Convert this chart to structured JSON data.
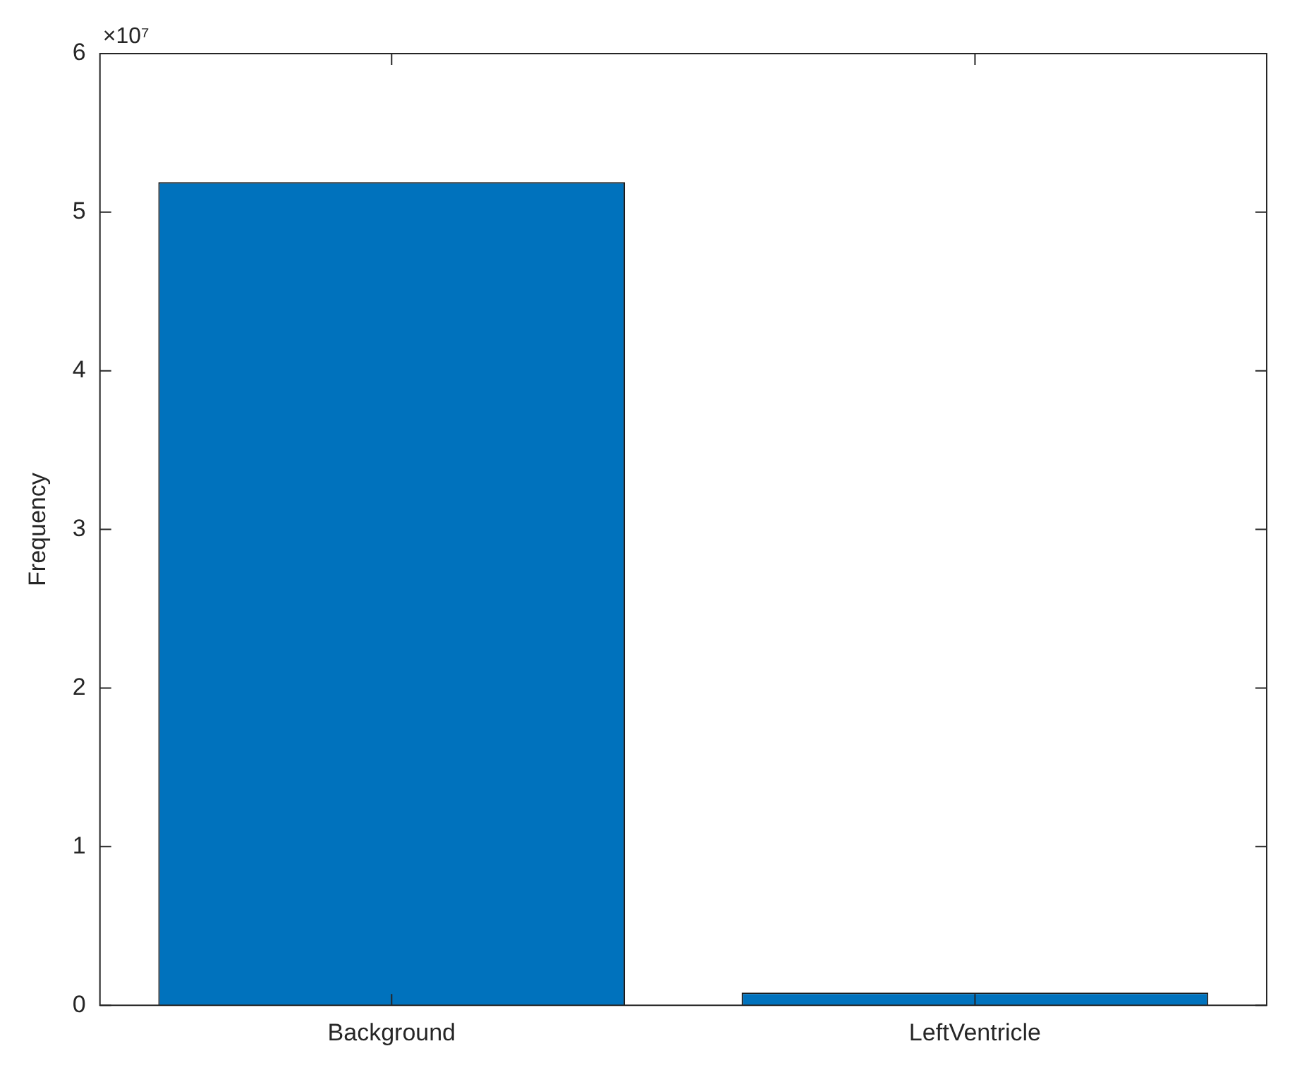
{
  "chart_data": {
    "type": "bar",
    "ylabel": "Frequency",
    "categories": [
      "Background",
      "LeftVentricle"
    ],
    "values": [
      5.19,
      0.08
    ],
    "color": "#0072bd",
    "ylim": [
      0,
      6
    ],
    "yticks": [
      0,
      1,
      2,
      3,
      4,
      5,
      6
    ],
    "grid": false,
    "legend": false,
    "annotations": [
      "×10⁷"
    ]
  }
}
